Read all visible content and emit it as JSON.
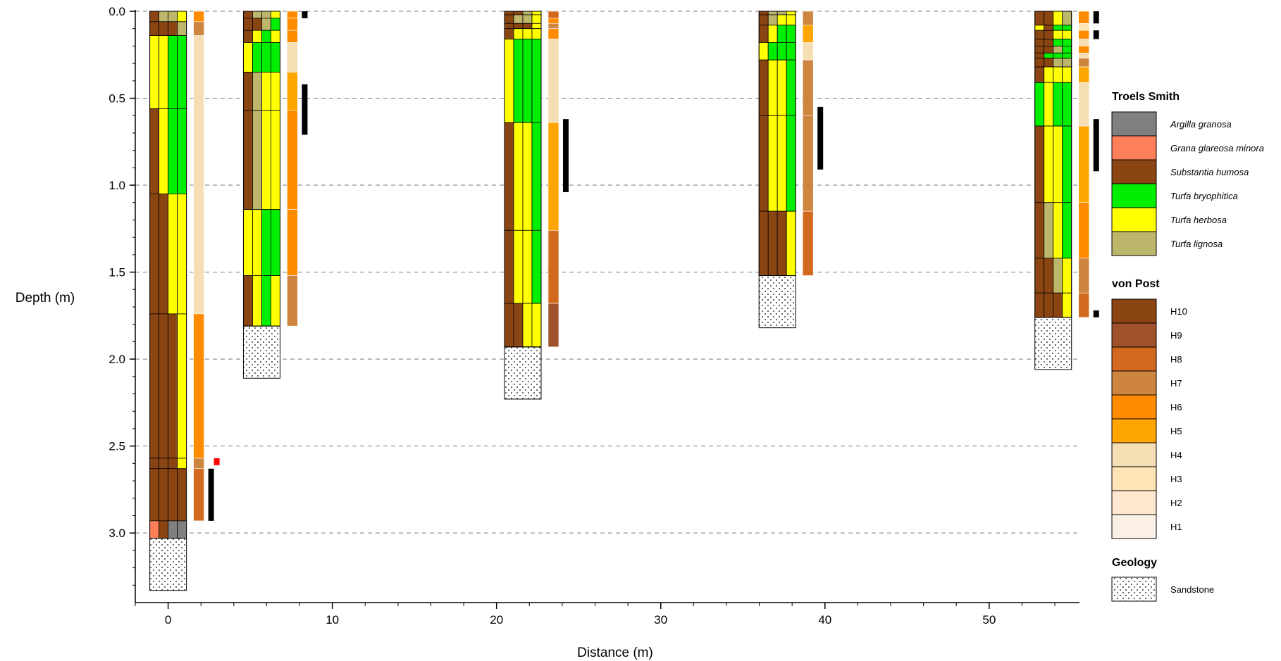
{
  "chart_data": {
    "type": "stratigraphic-profile",
    "xlabel": "Distance (m)",
    "ylabel": "Depth (m)",
    "xlim": [
      -2,
      55.5
    ],
    "ylim": [
      0,
      3.4
    ],
    "x_ticks": [
      0,
      10,
      20,
      30,
      40,
      50
    ],
    "y_ticks": [
      0.0,
      0.5,
      1.0,
      1.5,
      2.0,
      2.5,
      3.0
    ],
    "y_tick_labels": [
      "0.0",
      "0.5",
      "1.0",
      "1.5",
      "2.0",
      "2.5",
      "3.0"
    ],
    "gridlines": "horizontal dashed at each y tick",
    "legend_placement": "right",
    "colors": {
      "Ag": "#808080",
      "Gg": "#FF7F5A",
      "Sh": "#8B4513",
      "Tb": "#00EE00",
      "Th": "#FFFF00",
      "Tl": "#BDB76B",
      "H10": "#8B4513",
      "H9": "#A0522D",
      "H8": "#D2691E",
      "H7": "#CD853F",
      "H6": "#FF8C00",
      "H5": "#FFA500",
      "H4": "#F5DEB3",
      "H3": "#FFE4B5",
      "H2": "#FFE7CF",
      "H1": "#FAF0E6",
      "sample": "#000000",
      "sample_red": "#FF0000"
    },
    "legend": {
      "troels_smith_title": "Troels Smith",
      "troels_smith": [
        {
          "code": "Ag",
          "label": "Argilla granosa"
        },
        {
          "code": "Gg",
          "label": "Grana glareosa minora"
        },
        {
          "code": "Sh",
          "label": "Substantia humosa"
        },
        {
          "code": "Tb",
          "label": "Turfa bryophitica"
        },
        {
          "code": "Th",
          "label": "Turfa herbosa"
        },
        {
          "code": "Tl",
          "label": "Turfa lignosa"
        }
      ],
      "von_post_title": "von Post",
      "von_post": [
        "H10",
        "H9",
        "H8",
        "H7",
        "H6",
        "H5",
        "H4",
        "H3",
        "H2",
        "H1"
      ],
      "geology_title": "Geology",
      "geology": [
        {
          "code": "Sandstone",
          "label": "Sandstone"
        }
      ]
    },
    "cores": [
      {
        "x": 0,
        "layers": [
          {
            "top": 0.0,
            "bottom": 0.06,
            "comp": [
              "Sh",
              "Tl",
              "Tl",
              "Th"
            ]
          },
          {
            "top": 0.06,
            "bottom": 0.14,
            "comp": [
              "Sh",
              "Sh",
              "Sh",
              "Tl"
            ]
          },
          {
            "top": 0.14,
            "bottom": 0.56,
            "comp": [
              "Th",
              "Th",
              "Tb",
              "Tb"
            ]
          },
          {
            "top": 0.56,
            "bottom": 1.05,
            "comp": [
              "Sh",
              "Th",
              "Tb",
              "Tb"
            ]
          },
          {
            "top": 1.05,
            "bottom": 1.74,
            "comp": [
              "Sh",
              "Sh",
              "Th",
              "Th"
            ]
          },
          {
            "top": 1.74,
            "bottom": 2.57,
            "comp": [
              "Sh",
              "Sh",
              "Sh",
              "Th"
            ]
          },
          {
            "top": 2.57,
            "bottom": 2.63,
            "comp": [
              "Sh",
              "Sh",
              "Sh",
              "Th"
            ]
          },
          {
            "top": 2.63,
            "bottom": 2.93,
            "comp": [
              "Sh",
              "Sh",
              "Sh",
              "Sh"
            ]
          },
          {
            "top": 2.93,
            "bottom": 3.03,
            "comp": [
              "Gg",
              "Sh",
              "Ag",
              "Ag"
            ]
          }
        ],
        "geology": {
          "type": "Sandstone",
          "top": 3.03,
          "bottom": 3.33
        },
        "von_post": [
          {
            "top": 0.0,
            "bottom": 0.06,
            "H": "H6"
          },
          {
            "top": 0.06,
            "bottom": 0.14,
            "H": "H7"
          },
          {
            "top": 0.14,
            "bottom": 1.74,
            "H": "H4"
          },
          {
            "top": 1.74,
            "bottom": 2.57,
            "H": "H6"
          },
          {
            "top": 2.57,
            "bottom": 2.63,
            "H": "H7"
          },
          {
            "top": 2.63,
            "bottom": 2.93,
            "H": "H8"
          }
        ],
        "samples": [
          {
            "top": 2.57,
            "bottom": 2.61,
            "color": "red",
            "offset": 1
          },
          {
            "top": 2.63,
            "bottom": 2.93,
            "color": "black",
            "offset": 0
          }
        ]
      },
      {
        "x": 5.7,
        "layers": [
          {
            "top": 0.0,
            "bottom": 0.04,
            "comp": [
              "Sh",
              "Tl",
              "Tl",
              "Th"
            ]
          },
          {
            "top": 0.04,
            "bottom": 0.11,
            "comp": [
              "Sh",
              "Sh",
              "Tl",
              "Tb"
            ]
          },
          {
            "top": 0.11,
            "bottom": 0.18,
            "comp": [
              "Sh",
              "Th",
              "Tb",
              "Th"
            ]
          },
          {
            "top": 0.18,
            "bottom": 0.35,
            "comp": [
              "Th",
              "Tb",
              "Tb",
              "Tb"
            ]
          },
          {
            "top": 0.35,
            "bottom": 0.57,
            "comp": [
              "Sh",
              "Tl",
              "Th",
              "Th"
            ]
          },
          {
            "top": 0.57,
            "bottom": 1.14,
            "comp": [
              "Sh",
              "Tl",
              "Th",
              "Th"
            ]
          },
          {
            "top": 1.14,
            "bottom": 1.52,
            "comp": [
              "Th",
              "Th",
              "Tb",
              "Tb"
            ]
          },
          {
            "top": 1.52,
            "bottom": 1.81,
            "comp": [
              "Sh",
              "Th",
              "Tb",
              "Th"
            ]
          }
        ],
        "geology": {
          "type": "Sandstone",
          "top": 1.81,
          "bottom": 2.11
        },
        "von_post": [
          {
            "top": 0.0,
            "bottom": 0.04,
            "H": "H6"
          },
          {
            "top": 0.04,
            "bottom": 0.11,
            "H": "H6"
          },
          {
            "top": 0.11,
            "bottom": 0.18,
            "H": "H6"
          },
          {
            "top": 0.18,
            "bottom": 0.35,
            "H": "H4"
          },
          {
            "top": 0.35,
            "bottom": 0.57,
            "H": "H5"
          },
          {
            "top": 0.57,
            "bottom": 1.14,
            "H": "H6"
          },
          {
            "top": 1.14,
            "bottom": 1.52,
            "H": "H6"
          },
          {
            "top": 1.52,
            "bottom": 1.81,
            "H": "H7"
          }
        ],
        "samples": [
          {
            "top": 0.0,
            "bottom": 0.04,
            "color": "black",
            "offset": 0
          },
          {
            "top": 0.42,
            "bottom": 0.71,
            "color": "black",
            "offset": 0
          }
        ]
      },
      {
        "x": 21.6,
        "layers": [
          {
            "top": 0.0,
            "bottom": 0.02,
            "comp": [
              "Sh",
              "Sh",
              "Tl",
              "Th"
            ]
          },
          {
            "top": 0.02,
            "bottom": 0.07,
            "comp": [
              "Sh",
              "Tl",
              "Tl",
              "Th"
            ]
          },
          {
            "top": 0.07,
            "bottom": 0.1,
            "comp": [
              "Sh",
              "Sh",
              "Sh",
              "Th"
            ]
          },
          {
            "top": 0.1,
            "bottom": 0.16,
            "comp": [
              "Sh",
              "Th",
              "Th",
              "Th"
            ]
          },
          {
            "top": 0.16,
            "bottom": 0.64,
            "comp": [
              "Th",
              "Tb",
              "Tb",
              "Tb"
            ]
          },
          {
            "top": 0.64,
            "bottom": 1.26,
            "comp": [
              "Sh",
              "Th",
              "Th",
              "Tb"
            ]
          },
          {
            "top": 1.26,
            "bottom": 1.68,
            "comp": [
              "Sh",
              "Th",
              "Th",
              "Tb"
            ]
          },
          {
            "top": 1.68,
            "bottom": 1.93,
            "comp": [
              "Sh",
              "Sh",
              "Th",
              "Th"
            ]
          }
        ],
        "geology": {
          "type": "Sandstone",
          "top": 1.93,
          "bottom": 2.23
        },
        "von_post": [
          {
            "top": 0.0,
            "bottom": 0.04,
            "H": "H8"
          },
          {
            "top": 0.04,
            "bottom": 0.07,
            "H": "H6"
          },
          {
            "top": 0.07,
            "bottom": 0.1,
            "H": "H7"
          },
          {
            "top": 0.1,
            "bottom": 0.16,
            "H": "H6"
          },
          {
            "top": 0.16,
            "bottom": 0.64,
            "H": "H4"
          },
          {
            "top": 0.64,
            "bottom": 1.26,
            "H": "H5"
          },
          {
            "top": 1.26,
            "bottom": 1.68,
            "H": "H8"
          },
          {
            "top": 1.68,
            "bottom": 1.93,
            "H": "H9"
          }
        ],
        "samples": [
          {
            "top": 0.62,
            "bottom": 1.04,
            "color": "black",
            "offset": 0
          }
        ]
      },
      {
        "x": 37.1,
        "layers": [
          {
            "top": 0.0,
            "bottom": 0.02,
            "comp": [
              "Sh",
              "Tl",
              "Tl",
              "Th"
            ]
          },
          {
            "top": 0.02,
            "bottom": 0.08,
            "comp": [
              "Sh",
              "Tl",
              "Th",
              "Th"
            ]
          },
          {
            "top": 0.08,
            "bottom": 0.18,
            "comp": [
              "Sh",
              "Th",
              "Tb",
              "Tb"
            ]
          },
          {
            "top": 0.18,
            "bottom": 0.28,
            "comp": [
              "Th",
              "Tb",
              "Tb",
              "Tb"
            ]
          },
          {
            "top": 0.28,
            "bottom": 0.6,
            "comp": [
              "Sh",
              "Th",
              "Th",
              "Tb"
            ]
          },
          {
            "top": 0.6,
            "bottom": 1.15,
            "comp": [
              "Sh",
              "Th",
              "Th",
              "Tb"
            ]
          },
          {
            "top": 1.15,
            "bottom": 1.52,
            "comp": [
              "Sh",
              "Sh",
              "Sh",
              "Th"
            ]
          }
        ],
        "geology": {
          "type": "Sandstone",
          "top": 1.52,
          "bottom": 1.82
        },
        "von_post": [
          {
            "top": 0.0,
            "bottom": 0.08,
            "H": "H7"
          },
          {
            "top": 0.08,
            "bottom": 0.18,
            "H": "H5"
          },
          {
            "top": 0.18,
            "bottom": 0.28,
            "H": "H4"
          },
          {
            "top": 0.28,
            "bottom": 0.6,
            "H": "H7"
          },
          {
            "top": 0.6,
            "bottom": 1.15,
            "H": "H7"
          },
          {
            "top": 1.15,
            "bottom": 1.52,
            "H": "H8"
          }
        ],
        "samples": [
          {
            "top": 0.55,
            "bottom": 0.91,
            "color": "black",
            "offset": 0
          }
        ]
      },
      {
        "x": 53.9,
        "layers": [
          {
            "top": 0.0,
            "bottom": 0.08,
            "comp": [
              "Sh",
              "Sh",
              "Th",
              "Tl"
            ]
          },
          {
            "top": 0.08,
            "bottom": 0.11,
            "comp": [
              "Th",
              "Sh",
              "Tb",
              "Tb"
            ]
          },
          {
            "top": 0.11,
            "bottom": 0.16,
            "comp": [
              "Sh",
              "Sh",
              "Th",
              "Th"
            ]
          },
          {
            "top": 0.16,
            "bottom": 0.2,
            "comp": [
              "Sh",
              "Sh",
              "Tb",
              "Tb"
            ]
          },
          {
            "top": 0.2,
            "bottom": 0.24,
            "comp": [
              "Sh",
              "Sh",
              "Tl",
              "Tb"
            ]
          },
          {
            "top": 0.24,
            "bottom": 0.27,
            "comp": [
              "Sh",
              "Tb",
              "Tb",
              "Tb"
            ]
          },
          {
            "top": 0.27,
            "bottom": 0.32,
            "comp": [
              "Sh",
              "Sh",
              "Tl",
              "Tl"
            ]
          },
          {
            "top": 0.32,
            "bottom": 0.41,
            "comp": [
              "Sh",
              "Th",
              "Th",
              "Th"
            ]
          },
          {
            "top": 0.41,
            "bottom": 0.66,
            "comp": [
              "Tb",
              "Th",
              "Tb",
              "Tb"
            ]
          },
          {
            "top": 0.66,
            "bottom": 1.1,
            "comp": [
              "Sh",
              "Th",
              "Th",
              "Tb"
            ]
          },
          {
            "top": 1.1,
            "bottom": 1.42,
            "comp": [
              "Sh",
              "Tl",
              "Th",
              "Tb"
            ]
          },
          {
            "top": 1.42,
            "bottom": 1.62,
            "comp": [
              "Sh",
              "Sh",
              "Tl",
              "Th"
            ]
          },
          {
            "top": 1.62,
            "bottom": 1.76,
            "comp": [
              "Sh",
              "Sh",
              "Sh",
              "Th"
            ]
          }
        ],
        "geology": {
          "type": "Sandstone",
          "top": 1.76,
          "bottom": 2.06
        },
        "von_post": [
          {
            "top": 0.0,
            "bottom": 0.07,
            "H": "H6"
          },
          {
            "top": 0.07,
            "bottom": 0.11,
            "H": "H3"
          },
          {
            "top": 0.11,
            "bottom": 0.16,
            "H": "H6"
          },
          {
            "top": 0.16,
            "bottom": 0.2,
            "H": "H4"
          },
          {
            "top": 0.2,
            "bottom": 0.24,
            "H": "H6"
          },
          {
            "top": 0.24,
            "bottom": 0.27,
            "H": "H4"
          },
          {
            "top": 0.27,
            "bottom": 0.32,
            "H": "H7"
          },
          {
            "top": 0.32,
            "bottom": 0.41,
            "H": "H5"
          },
          {
            "top": 0.41,
            "bottom": 0.66,
            "H": "H4"
          },
          {
            "top": 0.66,
            "bottom": 1.1,
            "H": "H5"
          },
          {
            "top": 1.1,
            "bottom": 1.42,
            "H": "H6"
          },
          {
            "top": 1.42,
            "bottom": 1.62,
            "H": "H7"
          },
          {
            "top": 1.62,
            "bottom": 1.76,
            "H": "H8"
          }
        ],
        "samples": [
          {
            "top": 0.0,
            "bottom": 0.07,
            "color": "black",
            "offset": 0
          },
          {
            "top": 0.11,
            "bottom": 0.16,
            "color": "black",
            "offset": 0
          },
          {
            "top": 0.62,
            "bottom": 0.92,
            "color": "black",
            "offset": 0
          },
          {
            "top": 1.72,
            "bottom": 1.76,
            "color": "black",
            "offset": 0
          }
        ]
      }
    ]
  }
}
